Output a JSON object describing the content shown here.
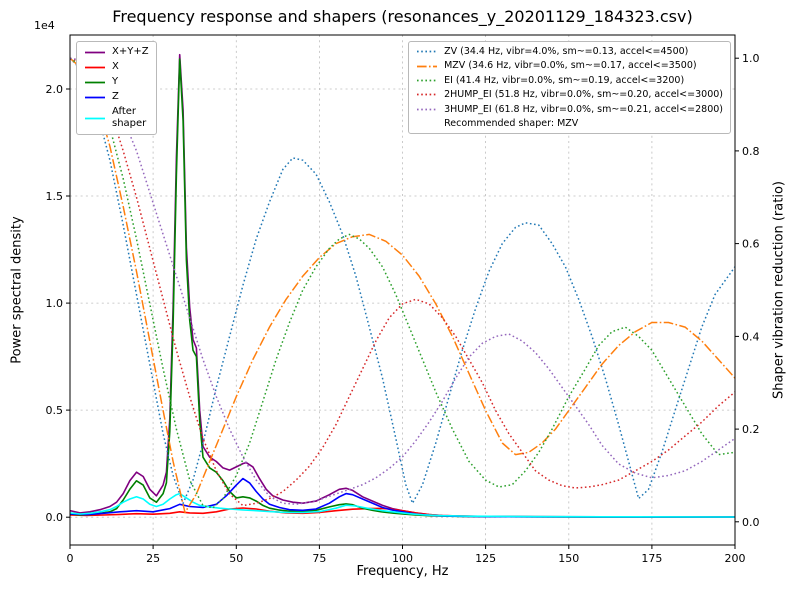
{
  "chart_data": {
    "type": "line",
    "title": "Frequency response and shapers (resonances_y_20201129_184323.csv)",
    "xlabel": "Frequency, Hz",
    "ylabel": "Power spectral density",
    "ylabel_right": "Shaper vibration reduction (ratio)",
    "offset_text": "1e4",
    "grid": true,
    "xlim": [
      0,
      200
    ],
    "ylim_left": [
      -1300,
      22520
    ],
    "ylim_right": [
      -0.05,
      1.05
    ],
    "xticks": [
      0,
      25,
      50,
      75,
      100,
      125,
      150,
      175,
      200
    ],
    "xtick_labels": [
      "0",
      "25",
      "50",
      "75",
      "100",
      "125",
      "150",
      "175",
      "200"
    ],
    "yticks_left": [
      0,
      5000,
      10000,
      15000,
      20000
    ],
    "ytick_left_labels": [
      "0.0",
      "0.5",
      "1.0",
      "1.5",
      "2.0"
    ],
    "yticks_right": [
      0.0,
      0.2,
      0.4,
      0.6,
      0.8,
      1.0
    ],
    "ytick_right_labels": [
      "0.0",
      "0.2",
      "0.4",
      "0.6",
      "0.8",
      "1.0"
    ],
    "recommended": "Recommended shaper: MZV",
    "psd_series": [
      {
        "name": "X+Y+Z",
        "legend_label": "X+Y+Z",
        "color": "#800080",
        "style": "solid",
        "x": [
          0,
          3,
          6,
          9,
          12,
          14,
          16,
          18,
          20,
          22,
          24,
          26,
          28,
          29,
          30,
          31,
          32,
          33,
          34,
          35,
          36,
          37,
          38,
          39,
          40,
          42,
          44,
          46,
          48,
          50,
          52,
          53,
          55,
          57,
          59,
          61,
          64,
          67,
          70,
          74,
          78,
          81,
          83,
          85,
          88,
          91,
          94,
          97,
          100,
          104,
          108,
          112,
          118,
          125,
          140,
          160,
          180,
          200
        ],
        "y": [
          300,
          200,
          250,
          350,
          500,
          700,
          1100,
          1700,
          2100,
          1900,
          1300,
          1000,
          1500,
          2100,
          4600,
          9800,
          16800,
          21600,
          19000,
          12600,
          9800,
          8300,
          7900,
          5000,
          3300,
          2800,
          2600,
          2300,
          2200,
          2350,
          2500,
          2550,
          2350,
          1800,
          1300,
          1000,
          800,
          700,
          650,
          750,
          1050,
          1300,
          1350,
          1250,
          950,
          750,
          550,
          400,
          300,
          200,
          120,
          80,
          50,
          35,
          22,
          15,
          12,
          10
        ]
      },
      {
        "name": "X",
        "legend_label": "X",
        "color": "#ff0000",
        "style": "solid",
        "x": [
          0,
          5,
          10,
          15,
          20,
          25,
          30,
          33,
          36,
          40,
          44,
          48,
          52,
          56,
          60,
          65,
          70,
          75,
          80,
          85,
          90,
          93,
          96,
          100,
          104,
          108,
          112,
          118,
          125,
          140,
          160,
          200
        ],
        "y": [
          100,
          80,
          100,
          130,
          160,
          140,
          180,
          250,
          200,
          180,
          250,
          380,
          430,
          380,
          280,
          200,
          180,
          220,
          300,
          370,
          400,
          410,
          380,
          300,
          200,
          120,
          80,
          50,
          30,
          20,
          12,
          8
        ]
      },
      {
        "name": "Y",
        "legend_label": "Y",
        "color": "#008000",
        "style": "solid",
        "x": [
          0,
          3,
          6,
          9,
          12,
          14,
          16,
          18,
          20,
          22,
          24,
          26,
          28,
          29,
          30,
          31,
          32,
          33,
          34,
          35,
          36,
          37,
          38,
          39,
          40,
          42,
          44,
          46,
          48,
          50,
          52,
          54,
          56,
          58,
          60,
          63,
          66,
          70,
          74,
          78,
          81,
          83,
          85,
          88,
          91,
          94,
          97,
          100,
          104,
          108,
          112,
          118,
          125,
          140,
          160,
          180,
          200
        ],
        "y": [
          150,
          100,
          120,
          180,
          250,
          400,
          800,
          1300,
          1700,
          1500,
          900,
          700,
          1100,
          1600,
          4000,
          9000,
          16000,
          21400,
          18500,
          12000,
          9200,
          7800,
          7500,
          4500,
          2800,
          2300,
          2100,
          1700,
          1200,
          900,
          950,
          900,
          750,
          550,
          420,
          330,
          280,
          260,
          320,
          480,
          580,
          620,
          580,
          420,
          320,
          240,
          190,
          150,
          100,
          70,
          50,
          35,
          25,
          18,
          12,
          10,
          8
        ]
      },
      {
        "name": "Z",
        "legend_label": "Z",
        "color": "#0000ff",
        "style": "solid",
        "x": [
          0,
          5,
          10,
          15,
          20,
          25,
          30,
          33,
          36,
          40,
          44,
          47,
          50,
          52,
          54,
          56,
          58,
          60,
          63,
          66,
          70,
          74,
          78,
          81,
          83,
          85,
          88,
          91,
          94,
          97,
          100,
          104,
          108,
          112,
          118,
          125,
          140,
          160,
          200
        ],
        "y": [
          150,
          120,
          180,
          250,
          300,
          250,
          400,
          600,
          500,
          450,
          600,
          1000,
          1500,
          1800,
          1600,
          1200,
          850,
          600,
          450,
          350,
          320,
          380,
          650,
          950,
          1100,
          1050,
          850,
          650,
          450,
          330,
          250,
          150,
          90,
          60,
          40,
          25,
          15,
          10,
          8
        ]
      },
      {
        "name": "After shaper",
        "legend_label": "After\nshaper",
        "color": "#00ffff",
        "style": "solid",
        "x": [
          0,
          3,
          6,
          9,
          12,
          14,
          16,
          18,
          20,
          22,
          24,
          26,
          28,
          30,
          32,
          33,
          35,
          37,
          39,
          42,
          45,
          48,
          52,
          56,
          60,
          65,
          70,
          75,
          80,
          83,
          86,
          90,
          94,
          98,
          102,
          106,
          112,
          120,
          140,
          160,
          200
        ],
        "y": [
          200,
          150,
          180,
          250,
          350,
          500,
          700,
          850,
          950,
          850,
          600,
          500,
          600,
          850,
          1050,
          1100,
          900,
          700,
          550,
          480,
          420,
          380,
          340,
          300,
          260,
          220,
          220,
          260,
          420,
          560,
          520,
          400,
          300,
          230,
          160,
          110,
          70,
          45,
          25,
          15,
          10
        ]
      }
    ],
    "shaper_series": [
      {
        "name": "ZV",
        "label": "ZV (34.4 Hz, vibr=4.0%, sm~=0.13, accel<=4500)",
        "color": "#1f77b4",
        "style": "dotted",
        "x": [
          0,
          4,
          8,
          12,
          16,
          20,
          24,
          28,
          31,
          34,
          37,
          40,
          44,
          48,
          52,
          56,
          60,
          64,
          67,
          70,
          74,
          78,
          82,
          86,
          90,
          94,
          98,
          101,
          103,
          106,
          110,
          114,
          118,
          122,
          126,
          130,
          134,
          137,
          141,
          145,
          149,
          153,
          157,
          161,
          165,
          168,
          171,
          174,
          178,
          182,
          186,
          190,
          194,
          197,
          200
        ],
        "y": [
          1.0,
          0.97,
          0.89,
          0.78,
          0.64,
          0.49,
          0.34,
          0.19,
          0.1,
          0.04,
          0.09,
          0.17,
          0.29,
          0.4,
          0.51,
          0.61,
          0.69,
          0.76,
          0.785,
          0.78,
          0.75,
          0.69,
          0.62,
          0.53,
          0.42,
          0.31,
          0.18,
          0.08,
          0.04,
          0.08,
          0.17,
          0.27,
          0.37,
          0.46,
          0.54,
          0.6,
          0.635,
          0.645,
          0.64,
          0.6,
          0.55,
          0.48,
          0.4,
          0.31,
          0.21,
          0.13,
          0.05,
          0.07,
          0.15,
          0.24,
          0.33,
          0.42,
          0.49,
          0.52,
          0.55
        ]
      },
      {
        "name": "MZV",
        "label": "MZV (34.6 Hz, vibr=0.0%, sm~=0.17, accel<=3500)",
        "color": "#ff7f0e",
        "style": "dashdot",
        "x": [
          0,
          4,
          8,
          12,
          16,
          20,
          24,
          28,
          31,
          34.6,
          38,
          42,
          46,
          50,
          55,
          60,
          65,
          70,
          75,
          80,
          85,
          90,
          95,
          100,
          105,
          110,
          115,
          120,
          125,
          130,
          134,
          138,
          142,
          146,
          150,
          155,
          160,
          165,
          170,
          175,
          180,
          185,
          190,
          195,
          200
        ],
        "y": [
          1.0,
          0.975,
          0.91,
          0.81,
          0.68,
          0.54,
          0.39,
          0.24,
          0.13,
          0.02,
          0.06,
          0.13,
          0.2,
          0.27,
          0.35,
          0.42,
          0.48,
          0.53,
          0.57,
          0.6,
          0.615,
          0.62,
          0.605,
          0.575,
          0.53,
          0.47,
          0.4,
          0.32,
          0.24,
          0.17,
          0.145,
          0.15,
          0.17,
          0.2,
          0.24,
          0.29,
          0.34,
          0.38,
          0.41,
          0.43,
          0.43,
          0.42,
          0.39,
          0.35,
          0.31
        ]
      },
      {
        "name": "EI",
        "label": "EI (41.4 Hz, vibr=0.0%, sm~=0.19, accel<=3200)",
        "color": "#2ca02c",
        "style": "dotted",
        "x": [
          0,
          4,
          8,
          12,
          16,
          20,
          24,
          28,
          32,
          36,
          40,
          43,
          46,
          50,
          54,
          58,
          62,
          66,
          70,
          74,
          78,
          81,
          84,
          87,
          90,
          94,
          98,
          102,
          106,
          110,
          115,
          120,
          125,
          129,
          133,
          137,
          141,
          145,
          150,
          155,
          159,
          163,
          167,
          171,
          175,
          180,
          185,
          190,
          195,
          200
        ],
        "y": [
          1.0,
          0.98,
          0.93,
          0.85,
          0.74,
          0.61,
          0.47,
          0.33,
          0.2,
          0.09,
          0.035,
          0.03,
          0.05,
          0.1,
          0.17,
          0.26,
          0.35,
          0.43,
          0.5,
          0.55,
          0.59,
          0.61,
          0.62,
          0.61,
          0.59,
          0.55,
          0.49,
          0.42,
          0.35,
          0.28,
          0.2,
          0.13,
          0.09,
          0.075,
          0.08,
          0.11,
          0.15,
          0.2,
          0.27,
          0.33,
          0.38,
          0.41,
          0.42,
          0.4,
          0.37,
          0.31,
          0.25,
          0.19,
          0.145,
          0.15
        ]
      },
      {
        "name": "2HUMP_EI",
        "label": "2HUMP_EI (51.8 Hz, vibr=0.0%, sm~=0.20, accel<=3000)",
        "color": "#d62728",
        "style": "dotted",
        "x": [
          0,
          4,
          8,
          12,
          16,
          20,
          24,
          28,
          32,
          36,
          40,
          44,
          48,
          52,
          56,
          60,
          64,
          68,
          72,
          76,
          80,
          84,
          88,
          92,
          96,
          100,
          104,
          108,
          112,
          116,
          120,
          124,
          128,
          132,
          136,
          140,
          144,
          148,
          152,
          156,
          160,
          165,
          170,
          175,
          180,
          185,
          190,
          195,
          200
        ],
        "y": [
          1.0,
          0.99,
          0.95,
          0.89,
          0.8,
          0.7,
          0.59,
          0.48,
          0.37,
          0.27,
          0.18,
          0.11,
          0.06,
          0.035,
          0.04,
          0.05,
          0.065,
          0.09,
          0.12,
          0.16,
          0.21,
          0.27,
          0.33,
          0.39,
          0.44,
          0.47,
          0.48,
          0.47,
          0.44,
          0.4,
          0.35,
          0.3,
          0.24,
          0.19,
          0.15,
          0.11,
          0.09,
          0.078,
          0.073,
          0.075,
          0.08,
          0.09,
          0.11,
          0.13,
          0.155,
          0.185,
          0.215,
          0.25,
          0.28
        ]
      },
      {
        "name": "3HUMP_EI",
        "label": "3HUMP_EI (61.8 Hz, vibr=0.0%, sm~=0.21, accel<=2800)",
        "color": "#9467bd",
        "style": "dotted",
        "x": [
          0,
          4,
          8,
          12,
          16,
          20,
          24,
          28,
          32,
          36,
          40,
          44,
          48,
          52,
          56,
          60,
          64,
          68,
          72,
          76,
          80,
          84,
          88,
          92,
          96,
          100,
          104,
          108,
          112,
          116,
          120,
          124,
          128,
          132,
          136,
          140,
          144,
          148,
          152,
          156,
          160,
          165,
          170,
          175,
          180,
          185,
          190,
          195,
          200
        ],
        "y": [
          1.0,
          0.995,
          0.97,
          0.93,
          0.87,
          0.8,
          0.71,
          0.62,
          0.53,
          0.44,
          0.35,
          0.27,
          0.2,
          0.14,
          0.09,
          0.055,
          0.04,
          0.038,
          0.042,
          0.05,
          0.06,
          0.07,
          0.08,
          0.095,
          0.115,
          0.14,
          0.175,
          0.215,
          0.26,
          0.31,
          0.355,
          0.385,
          0.4,
          0.405,
          0.39,
          0.365,
          0.33,
          0.29,
          0.25,
          0.21,
          0.165,
          0.125,
          0.105,
          0.095,
          0.1,
          0.11,
          0.13,
          0.155,
          0.18
        ]
      }
    ]
  }
}
